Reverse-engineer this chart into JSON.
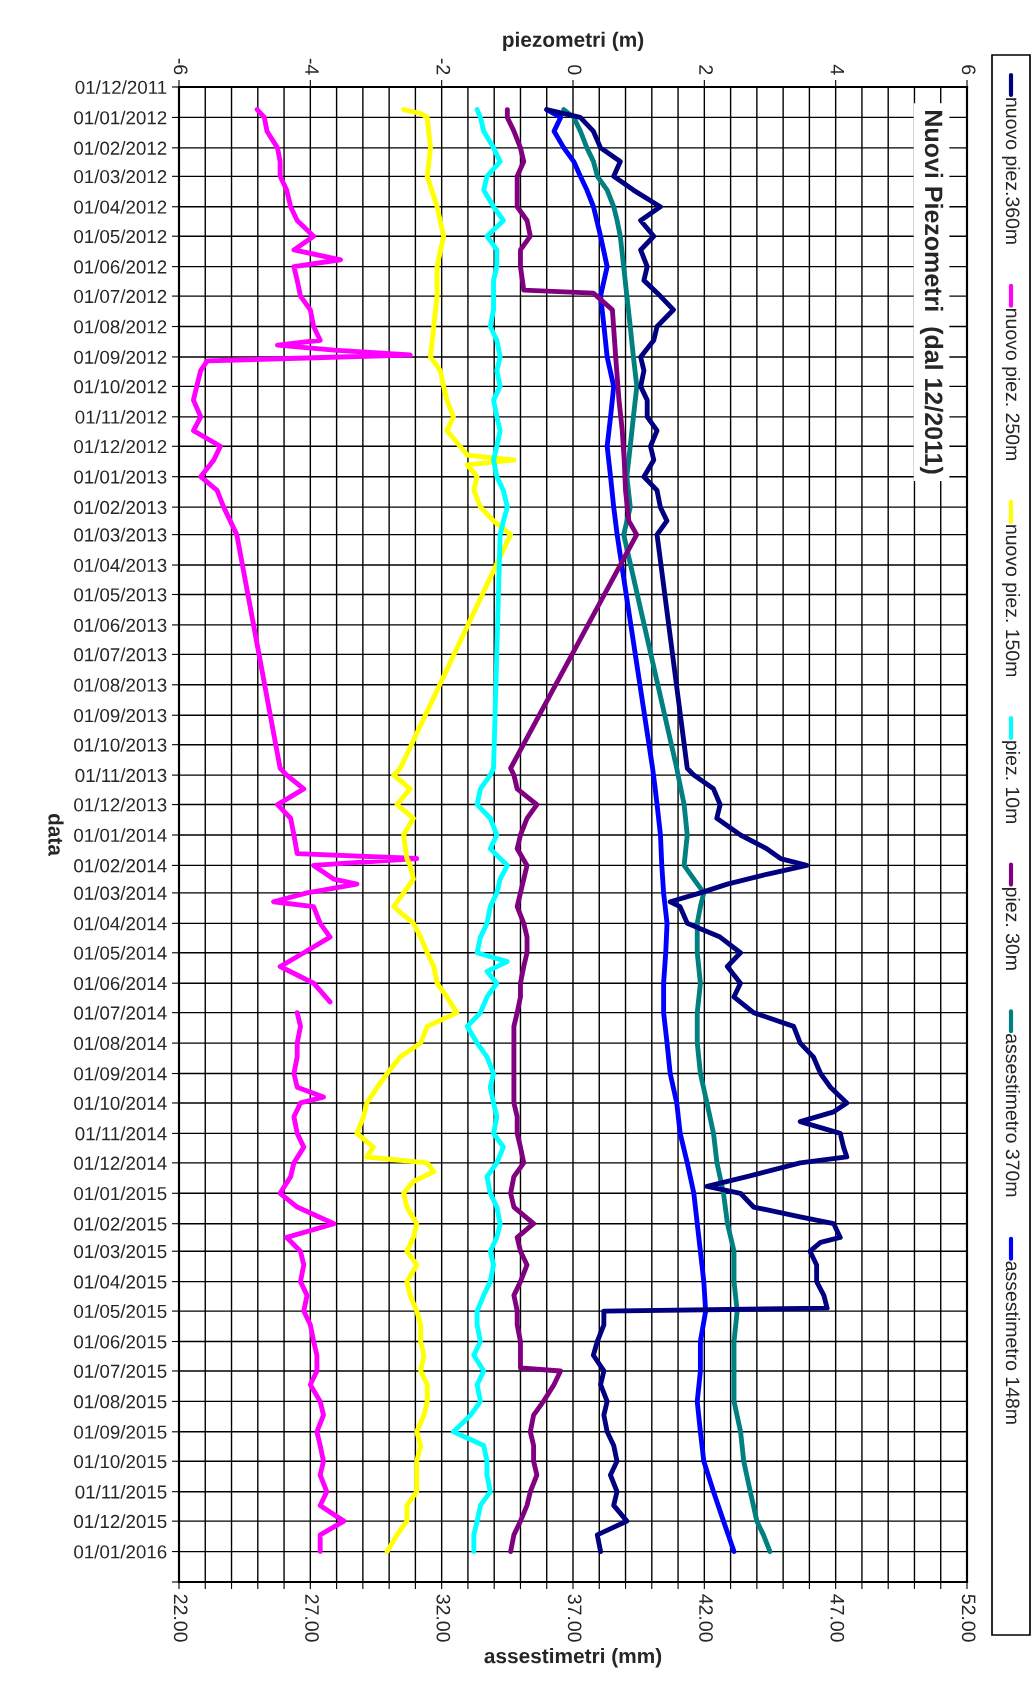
{
  "chart_data": {
    "type": "line",
    "orientation": "horizontal",
    "title": "Nuovi Piezometri  (dal 12/2011)",
    "xlabel": "assestimetri (mm)",
    "x2label": "piezometri (m)",
    "ylabel": "data",
    "legend": "right",
    "grid": true,
    "xlim": [
      22,
      52
    ],
    "xticks": [
      {
        "value": 22,
        "label": "22.00"
      },
      {
        "value": 23,
        "label": null
      },
      {
        "value": 24,
        "label": null
      },
      {
        "value": 25,
        "label": null
      },
      {
        "value": 26,
        "label": null
      },
      {
        "value": 27,
        "label": "27.00"
      },
      {
        "value": 28,
        "label": null
      },
      {
        "value": 29,
        "label": null
      },
      {
        "value": 30,
        "label": null
      },
      {
        "value": 31,
        "label": null
      },
      {
        "value": 32,
        "label": "32.00"
      },
      {
        "value": 33,
        "label": null
      },
      {
        "value": 34,
        "label": null
      },
      {
        "value": 35,
        "label": null
      },
      {
        "value": 36,
        "label": null
      },
      {
        "value": 37,
        "label": "37.00"
      },
      {
        "value": 38,
        "label": null
      },
      {
        "value": 39,
        "label": null
      },
      {
        "value": 40,
        "label": null
      },
      {
        "value": 41,
        "label": null
      },
      {
        "value": 42,
        "label": "42.00"
      },
      {
        "value": 43,
        "label": null
      },
      {
        "value": 44,
        "label": null
      },
      {
        "value": 45,
        "label": null
      },
      {
        "value": 46,
        "label": null
      },
      {
        "value": 47,
        "label": "47.00"
      },
      {
        "value": 48,
        "label": null
      },
      {
        "value": 49,
        "label": null
      },
      {
        "value": 50,
        "label": null
      },
      {
        "value": 51,
        "label": null
      },
      {
        "value": 52,
        "label": "52.00"
      }
    ],
    "x2lim": [
      -6,
      6
    ],
    "x2ticks": [
      -6,
      -4,
      -2,
      0,
      2,
      4,
      6
    ],
    "ylim": [
      "2016-02-01",
      "2011-12-01"
    ],
    "yticks": [
      {
        "value": "2011-12-01",
        "label": "01/12/2011"
      },
      {
        "value": "2012-01-01",
        "label": "01/01/2012"
      },
      {
        "value": "2012-02-01",
        "label": "01/02/2012"
      },
      {
        "value": "2012-03-01",
        "label": "01/03/2012"
      },
      {
        "value": "2012-04-01",
        "label": "01/04/2012"
      },
      {
        "value": "2012-05-01",
        "label": "01/05/2012"
      },
      {
        "value": "2012-06-01",
        "label": "01/06/2012"
      },
      {
        "value": "2012-07-01",
        "label": "01/07/2012"
      },
      {
        "value": "2012-08-01",
        "label": "01/08/2012"
      },
      {
        "value": "2012-09-01",
        "label": "01/09/2012"
      },
      {
        "value": "2012-10-01",
        "label": "01/10/2012"
      },
      {
        "value": "2012-11-01",
        "label": "01/11/2012"
      },
      {
        "value": "2012-12-01",
        "label": "01/12/2012"
      },
      {
        "value": "2013-01-01",
        "label": "01/01/2013"
      },
      {
        "value": "2013-02-01",
        "label": "01/02/2013"
      },
      {
        "value": "2013-03-01",
        "label": "01/03/2013"
      },
      {
        "value": "2013-04-01",
        "label": "01/04/2013"
      },
      {
        "value": "2013-05-01",
        "label": "01/05/2013"
      },
      {
        "value": "2013-06-01",
        "label": "01/06/2013"
      },
      {
        "value": "2013-07-01",
        "label": "01/07/2013"
      },
      {
        "value": "2013-08-01",
        "label": "01/08/2013"
      },
      {
        "value": "2013-09-01",
        "label": "01/09/2013"
      },
      {
        "value": "2013-10-01",
        "label": "01/10/2013"
      },
      {
        "value": "2013-11-01",
        "label": "01/11/2013"
      },
      {
        "value": "2013-12-01",
        "label": "01/12/2013"
      },
      {
        "value": "2014-01-01",
        "label": "01/01/2014"
      },
      {
        "value": "2014-02-01",
        "label": "01/02/2014"
      },
      {
        "value": "2014-03-01",
        "label": "01/03/2014"
      },
      {
        "value": "2014-04-01",
        "label": "01/04/2014"
      },
      {
        "value": "2014-05-01",
        "label": "01/05/2014"
      },
      {
        "value": "2014-06-01",
        "label": "01/06/2014"
      },
      {
        "value": "2014-07-01",
        "label": "01/07/2014"
      },
      {
        "value": "2014-08-01",
        "label": "01/08/2014"
      },
      {
        "value": "2014-09-01",
        "label": "01/09/2014"
      },
      {
        "value": "2014-10-01",
        "label": "01/10/2014"
      },
      {
        "value": "2014-11-01",
        "label": "01/11/2014"
      },
      {
        "value": "2014-12-01",
        "label": "01/12/2014"
      },
      {
        "value": "2015-01-01",
        "label": "01/01/2015"
      },
      {
        "value": "2015-02-01",
        "label": "01/02/2015"
      },
      {
        "value": "2015-03-01",
        "label": "01/03/2015"
      },
      {
        "value": "2015-04-01",
        "label": "01/04/2015"
      },
      {
        "value": "2015-05-01",
        "label": "01/05/2015"
      },
      {
        "value": "2015-06-01",
        "label": "01/06/2015"
      },
      {
        "value": "2015-07-01",
        "label": "01/07/2015"
      },
      {
        "value": "2015-08-01",
        "label": "01/08/2015"
      },
      {
        "value": "2015-09-01",
        "label": "01/09/2015"
      },
      {
        "value": "2015-10-01",
        "label": "01/10/2015"
      },
      {
        "value": "2015-11-01",
        "label": "01/11/2015"
      },
      {
        "value": "2015-12-01",
        "label": "01/12/2015"
      },
      {
        "value": "2016-01-01",
        "label": "01/01/2016"
      },
      {
        "value": "2016-02-01",
        "label": null
      }
    ],
    "series": [
      {
        "name": "nuovo piez.360m",
        "color": "#000080",
        "axis": "x2",
        "x": [
          "2011-12-24",
          "2012-01-01",
          "2012-01-15",
          "2012-02-01",
          "2012-02-15",
          "2012-03-01",
          "2012-03-15",
          "2012-04-01",
          "2012-04-15",
          "2012-05-01",
          "2012-05-15",
          "2012-06-01",
          "2012-06-15",
          "2012-07-01",
          "2012-07-15",
          "2012-08-01",
          "2012-08-15",
          "2012-09-01",
          "2012-09-15",
          "2012-10-01",
          "2012-10-15",
          "2012-11-01",
          "2012-11-15",
          "2012-12-01",
          "2012-12-15",
          "2013-01-01",
          "2013-01-15",
          "2013-02-01",
          "2013-02-15",
          "2013-03-01",
          "2013-10-25",
          "2013-11-01",
          "2013-11-15",
          "2013-12-01",
          "2013-12-15",
          "2014-01-01",
          "2014-01-15",
          "2014-01-25",
          "2014-02-01",
          "2014-02-10",
          "2014-02-20",
          "2014-03-01",
          "2014-03-10",
          "2014-03-15",
          "2014-04-01",
          "2014-04-15",
          "2014-05-01",
          "2014-05-15",
          "2014-06-01",
          "2014-06-15",
          "2014-07-01",
          "2014-07-15",
          "2014-08-01",
          "2014-08-15",
          "2014-09-01",
          "2014-09-15",
          "2014-10-01",
          "2014-10-10",
          "2014-10-20",
          "2014-11-01",
          "2014-11-15",
          "2014-11-25",
          "2014-12-01",
          "2014-12-15",
          "2014-12-25",
          "2015-01-01",
          "2015-01-15",
          "2015-01-25",
          "2015-02-01",
          "2015-02-15",
          "2015-02-20",
          "2015-03-01",
          "2015-03-15",
          "2015-04-01",
          "2015-04-15",
          "2015-04-28",
          "2015-05-01",
          "2015-05-15",
          "2015-06-01",
          "2015-06-15",
          "2015-07-01",
          "2015-07-15",
          "2015-08-01",
          "2015-08-15",
          "2015-09-01",
          "2015-09-15",
          "2015-10-01",
          "2015-10-15",
          "2015-11-01",
          "2015-11-15",
          "2015-12-01",
          "2015-12-15",
          "2016-01-01"
        ],
        "values": [
          -0.4,
          0.11,
          0.31,
          0.42,
          0.72,
          0.62,
          0.92,
          1.33,
          1.03,
          1.23,
          1.03,
          1.13,
          1.08,
          1.33,
          1.53,
          1.28,
          1.23,
          1.03,
          1.08,
          1.03,
          1.13,
          1.13,
          1.28,
          1.18,
          1.23,
          1.08,
          1.28,
          1.33,
          1.43,
          1.28,
          1.74,
          1.84,
          2.14,
          2.24,
          2.19,
          2.55,
          2.95,
          3.16,
          3.56,
          2.95,
          2.35,
          1.94,
          1.48,
          1.63,
          1.74,
          2.24,
          2.55,
          2.35,
          2.55,
          2.45,
          2.75,
          3.36,
          3.46,
          3.66,
          3.77,
          3.92,
          4.17,
          3.97,
          3.46,
          4.07,
          4.12,
          4.17,
          3.46,
          2.65,
          2.04,
          2.55,
          2.75,
          3.46,
          3.97,
          4.07,
          3.77,
          3.61,
          3.71,
          3.71,
          3.82,
          3.87,
          0.47,
          0.47,
          0.37,
          0.31,
          0.47,
          0.42,
          0.52,
          0.47,
          0.52,
          0.62,
          0.67,
          0.57,
          0.67,
          0.62,
          0.82,
          0.37,
          0.42
        ]
      },
      {
        "name": "nuovo piez. 250m",
        "color": "#ff00ff",
        "axis": "x2",
        "x": [
          "2011-12-24",
          "2012-01-01",
          "2012-01-15",
          "2012-02-01",
          "2012-02-15",
          "2012-03-01",
          "2012-03-15",
          "2012-04-01",
          "2012-04-15",
          "2012-05-01",
          "2012-05-15",
          "2012-05-25",
          "2012-06-01",
          "2012-06-15",
          "2012-07-01",
          "2012-07-15",
          "2012-08-01",
          "2012-08-15",
          "2012-08-20",
          "2012-08-25",
          "2012-08-30",
          "2012-09-05",
          "2012-09-15",
          "2012-10-01",
          "2012-10-15",
          "2012-11-01",
          "2012-11-15",
          "2012-12-01",
          "2012-12-15",
          "2013-01-01",
          "2013-01-15",
          "2013-02-01",
          "2013-02-15",
          "2013-03-01",
          "2013-10-25",
          "2013-11-01",
          "2013-11-15",
          "2013-12-01",
          "2013-12-15",
          "2014-01-01",
          "2014-01-20",
          "2014-01-25",
          "2014-02-01",
          "2014-02-15",
          "2014-02-20",
          "2014-03-01",
          "2014-03-10",
          "2014-03-15",
          "2014-04-01",
          "2014-04-15",
          "2014-05-01",
          "2014-05-15",
          "2014-06-01",
          "2014-06-20",
          "2014-06-25",
          "2014-07-01",
          "2014-07-15",
          "2014-08-01",
          "2014-08-15",
          "2014-09-01",
          "2014-09-15",
          "2014-09-25",
          "2014-10-01",
          "2014-10-15",
          "2014-11-01",
          "2014-11-15",
          "2014-12-01",
          "2014-12-15",
          "2015-01-01",
          "2015-01-15",
          "2015-02-01",
          "2015-02-15",
          "2015-03-01",
          "2015-03-15",
          "2015-04-01",
          "2015-04-15",
          "2015-05-01",
          "2015-05-15",
          "2015-06-01",
          "2015-06-15",
          "2015-07-01",
          "2015-07-15",
          "2015-08-01",
          "2015-08-15",
          "2015-09-01",
          "2015-09-15",
          "2015-10-01",
          "2015-10-15",
          "2015-11-01",
          "2015-11-15",
          "2015-12-01",
          "2015-12-15",
          "2016-01-01"
        ],
        "values": [
          -4.81,
          -4.7,
          -4.66,
          -4.5,
          -4.46,
          -4.46,
          -4.36,
          -4.3,
          -4.2,
          -3.95,
          -4.25,
          -3.54,
          -4.25,
          -4.2,
          -4.15,
          -4.0,
          -3.95,
          -3.85,
          -4.5,
          -3.64,
          -2.48,
          -5.57,
          -5.67,
          -5.73,
          -5.78,
          -5.67,
          -5.78,
          -5.37,
          -5.47,
          -5.67,
          -5.42,
          -5.32,
          -5.22,
          -5.12,
          -4.46,
          -4.36,
          -4.1,
          -4.5,
          -4.3,
          -4.25,
          -4.2,
          -2.38,
          -3.95,
          -3.64,
          -3.29,
          -4.05,
          -4.56,
          -3.95,
          -3.85,
          -3.7,
          -4.1,
          -4.46,
          -3.95,
          -3.7,
          null,
          -4.2,
          -4.15,
          -4.2,
          -4.2,
          -4.25,
          -4.2,
          -3.8,
          -4.15,
          -4.25,
          -4.2,
          -4.1,
          -4.25,
          -4.3,
          -4.46,
          -4.2,
          -3.64,
          -4.36,
          -4.15,
          -4.1,
          -4.15,
          -4.05,
          -4.1,
          -4.0,
          -3.95,
          -3.9,
          -3.9,
          -4.0,
          -3.85,
          -3.8,
          -3.9,
          -3.85,
          -3.8,
          -3.85,
          -3.75,
          -3.85,
          -3.49,
          -3.85,
          -3.85
        ]
      },
      {
        "name": "nuovo piez. 150m",
        "color": "#ffff00",
        "axis": "x2",
        "x": [
          "2011-12-24",
          "2011-12-28",
          "2012-01-01",
          "2012-02-01",
          "2012-03-01",
          "2012-04-01",
          "2012-05-01",
          "2012-06-01",
          "2012-07-01",
          "2012-08-01",
          "2012-09-01",
          "2012-09-15",
          "2012-10-01",
          "2012-10-15",
          "2012-11-01",
          "2012-11-15",
          "2012-12-01",
          "2012-12-10",
          "2012-12-15",
          "2012-12-20",
          "2013-01-01",
          "2013-01-15",
          "2013-02-01",
          "2013-02-15",
          "2013-03-01",
          "2013-10-25",
          "2013-11-01",
          "2013-11-15",
          "2013-12-01",
          "2013-12-15",
          "2014-01-01",
          "2014-01-25",
          "2014-02-01",
          "2014-02-15",
          "2014-03-01",
          "2014-03-15",
          "2014-04-01",
          "2014-04-15",
          "2014-05-01",
          "2014-05-15",
          "2014-06-01",
          "2014-06-15",
          "2014-07-01",
          "2014-07-15",
          "2014-08-01",
          "2014-08-15",
          "2014-09-01",
          "2014-09-15",
          "2014-10-01",
          "2014-10-15",
          "2014-11-01",
          "2014-11-15",
          "2014-11-25",
          "2014-12-01",
          "2014-12-10",
          "2014-12-20",
          "2015-01-01",
          "2015-01-15",
          "2015-02-01",
          "2015-02-15",
          "2015-03-01",
          "2015-03-15",
          "2015-04-01",
          "2015-04-15",
          "2015-05-01",
          "2015-05-15",
          "2015-06-01",
          "2015-06-15",
          "2015-07-01",
          "2015-07-15",
          "2015-08-01",
          "2015-08-15",
          "2015-09-01",
          "2015-09-15",
          "2015-10-01",
          "2015-10-15",
          "2015-11-01",
          "2015-11-15",
          "2015-12-01",
          "2015-12-15",
          "2016-01-01"
        ],
        "values": [
          -2.58,
          -2.32,
          -2.22,
          -2.17,
          -2.22,
          -2.07,
          -1.97,
          -2.07,
          -2.07,
          -2.12,
          -2.17,
          -2.02,
          -1.97,
          -1.92,
          -1.82,
          -1.92,
          -1.72,
          -1.61,
          -0.9,
          -1.61,
          -1.46,
          -1.51,
          -1.41,
          -1.21,
          -0.95,
          -2.63,
          -2.73,
          -2.48,
          -2.68,
          -2.43,
          -2.58,
          -2.53,
          -2.48,
          -2.43,
          -2.58,
          -2.73,
          -2.43,
          -2.32,
          -2.22,
          -2.12,
          -2.07,
          -1.92,
          -1.77,
          -2.22,
          -2.32,
          -2.63,
          -2.83,
          -2.98,
          -3.14,
          -3.19,
          -3.29,
          -3.04,
          -3.14,
          -2.22,
          -2.12,
          -2.43,
          -2.58,
          -2.53,
          -2.38,
          -2.43,
          -2.53,
          -2.38,
          -2.53,
          -2.48,
          -2.38,
          -2.32,
          -2.32,
          -2.27,
          -2.32,
          -2.22,
          -2.22,
          -2.27,
          -2.38,
          -2.32,
          -2.38,
          -2.38,
          -2.38,
          -2.53,
          -2.53,
          -2.68,
          -2.83
        ]
      },
      {
        "name": "piez. 10m",
        "color": "#00ffff",
        "axis": "x2",
        "x": [
          "2011-12-24",
          "2012-01-01",
          "2012-01-15",
          "2012-02-01",
          "2012-02-15",
          "2012-03-01",
          "2012-03-15",
          "2012-04-01",
          "2012-04-15",
          "2012-05-01",
          "2012-05-15",
          "2012-06-01",
          "2012-06-15",
          "2012-07-01",
          "2012-07-15",
          "2012-08-01",
          "2012-08-15",
          "2012-09-01",
          "2012-09-15",
          "2012-10-01",
          "2012-10-15",
          "2012-11-01",
          "2012-11-15",
          "2012-12-01",
          "2012-12-15",
          "2013-01-01",
          "2013-01-15",
          "2013-02-01",
          "2013-02-15",
          "2013-03-01",
          "2013-10-25",
          "2013-11-01",
          "2013-11-15",
          "2013-12-01",
          "2013-12-15",
          "2014-01-01",
          "2014-01-15",
          "2014-02-01",
          "2014-02-15",
          "2014-03-01",
          "2014-03-15",
          "2014-04-01",
          "2014-04-15",
          "2014-05-01",
          "2014-05-10",
          "2014-05-20",
          "2014-06-01",
          "2014-06-15",
          "2014-07-01",
          "2014-07-15",
          "2014-08-01",
          "2014-08-15",
          "2014-09-01",
          "2014-09-15",
          "2014-10-01",
          "2014-10-15",
          "2014-11-01",
          "2014-11-15",
          "2014-12-01",
          "2014-12-15",
          "2015-01-01",
          "2015-01-15",
          "2015-02-01",
          "2015-02-15",
          "2015-03-01",
          "2015-03-15",
          "2015-04-01",
          "2015-04-15",
          "2015-05-01",
          "2015-05-15",
          "2015-06-01",
          "2015-06-15",
          "2015-07-01",
          "2015-07-15",
          "2015-08-01",
          "2015-08-15",
          "2015-09-01",
          "2015-09-15",
          "2015-10-01",
          "2015-10-15",
          "2015-11-01",
          "2015-11-15",
          "2015-12-01",
          "2015-12-15",
          "2016-01-01"
        ],
        "values": [
          -1.46,
          -1.41,
          -1.36,
          -1.21,
          -1.11,
          -1.31,
          -1.36,
          -1.21,
          -1.06,
          -1.31,
          -1.16,
          -1.16,
          -1.21,
          -1.21,
          -1.21,
          -1.26,
          -1.16,
          -1.11,
          -1.16,
          -1.11,
          -1.21,
          -1.16,
          -1.11,
          -1.16,
          -1.21,
          -1.16,
          -1.06,
          -1.0,
          -1.06,
          -1.11,
          -1.21,
          -1.26,
          -1.41,
          -1.46,
          -1.26,
          -1.16,
          -1.26,
          -1.0,
          -1.11,
          -1.16,
          -1.26,
          -1.31,
          -1.41,
          -1.46,
          -1.0,
          -1.31,
          -1.16,
          -1.31,
          -1.41,
          -1.61,
          -1.46,
          -1.31,
          -1.21,
          -1.26,
          -1.21,
          -1.16,
          -1.21,
          -1.06,
          -1.16,
          -1.31,
          -1.26,
          -1.16,
          -1.11,
          -1.16,
          -1.26,
          -1.21,
          -1.26,
          -1.36,
          -1.46,
          -1.46,
          -1.41,
          -1.51,
          -1.36,
          -1.46,
          -1.41,
          -1.56,
          -1.82,
          -1.36,
          -1.31,
          -1.31,
          -1.26,
          -1.41,
          -1.46,
          -1.51,
          -1.51
        ]
      },
      {
        "name": "piez. 30m",
        "color": "#800080",
        "axis": "x2",
        "x": [
          "2011-12-24",
          "2012-01-01",
          "2012-01-15",
          "2012-02-01",
          "2012-02-15",
          "2012-03-01",
          "2012-04-01",
          "2012-04-15",
          "2012-05-01",
          "2012-05-15",
          "2012-06-01",
          "2012-06-25",
          "2012-06-28",
          "2012-07-15",
          "2012-09-01",
          "2012-10-15",
          "2012-11-15",
          "2012-12-15",
          "2013-01-15",
          "2013-02-15",
          "2013-03-01",
          "2013-10-25",
          "2013-11-01",
          "2013-11-15",
          "2013-12-01",
          "2013-12-15",
          "2014-01-01",
          "2014-01-15",
          "2014-02-01",
          "2014-02-15",
          "2014-03-01",
          "2014-03-15",
          "2014-04-01",
          "2014-04-15",
          "2014-05-01",
          "2014-05-15",
          "2014-06-01",
          "2014-06-15",
          "2014-07-01",
          "2014-07-15",
          "2014-08-01",
          "2014-09-01",
          "2014-10-01",
          "2014-10-15",
          "2014-11-01",
          "2014-11-15",
          "2014-12-01",
          "2014-12-15",
          "2015-01-01",
          "2015-01-15",
          "2015-02-01",
          "2015-02-15",
          "2015-03-01",
          "2015-03-15",
          "2015-04-01",
          "2015-04-15",
          "2015-05-01",
          "2015-05-15",
          "2015-06-01",
          "2015-06-28",
          "2015-07-01",
          "2015-07-15",
          "2015-08-01",
          "2015-08-15",
          "2015-09-01",
          "2015-09-15",
          "2015-10-01",
          "2015-10-15",
          "2015-11-01",
          "2015-11-15",
          "2015-12-01",
          "2015-12-15",
          "2016-01-01"
        ],
        "values": [
          -1.0,
          -1.0,
          -0.9,
          -0.8,
          -0.75,
          -0.85,
          -0.85,
          -0.7,
          -0.65,
          -0.8,
          -0.8,
          -0.75,
          0.31,
          0.6,
          0.65,
          0.7,
          0.75,
          0.78,
          0.8,
          0.85,
          0.97,
          -0.95,
          -0.9,
          -0.85,
          -0.55,
          -0.7,
          -0.8,
          -0.85,
          -0.7,
          -0.75,
          -0.8,
          -0.85,
          -0.75,
          -0.7,
          -0.7,
          -0.75,
          -0.8,
          -0.8,
          -0.85,
          -0.9,
          -0.9,
          -0.9,
          -0.9,
          -0.85,
          -0.85,
          -0.8,
          -0.75,
          -0.9,
          -0.95,
          -0.9,
          -0.6,
          -0.85,
          -0.8,
          -0.7,
          -0.8,
          -0.9,
          -0.85,
          -0.85,
          -0.8,
          -0.8,
          -0.19,
          -0.29,
          -0.45,
          -0.6,
          -0.65,
          -0.6,
          -0.6,
          -0.55,
          -0.65,
          -0.7,
          -0.8,
          -0.9,
          -0.95
        ]
      },
      {
        "name": "assestimetro 370m",
        "color": "#008080",
        "x": [
          "2011-12-24",
          "2012-01-01",
          "2012-01-15",
          "2012-02-01",
          "2012-02-15",
          "2012-03-01",
          "2012-03-15",
          "2012-04-01",
          "2012-04-15",
          "2012-05-01",
          "2012-06-01",
          "2012-07-01",
          "2012-08-01",
          "2012-09-01",
          "2012-10-01",
          "2012-11-01",
          "2012-12-01",
          "2013-01-01",
          "2013-02-01",
          "2013-03-01",
          "2013-10-25",
          "2013-11-01",
          "2013-12-01",
          "2014-01-01",
          "2014-02-01",
          "2014-02-15",
          "2014-03-01",
          "2014-03-15",
          "2014-04-01",
          "2014-05-01",
          "2014-06-01",
          "2014-07-01",
          "2014-08-01",
          "2014-09-01",
          "2014-10-01",
          "2014-11-01",
          "2014-12-01",
          "2015-01-01",
          "2015-02-01",
          "2015-03-01",
          "2015-04-01",
          "2015-05-01",
          "2015-06-01",
          "2015-07-01",
          "2015-08-01",
          "2015-09-01",
          "2015-10-01",
          "2015-11-01",
          "2015-12-01",
          "2015-12-15",
          "2016-01-01"
        ],
        "values": [
          36.65,
          37.03,
          37.28,
          37.53,
          37.78,
          37.93,
          38.3,
          38.55,
          38.68,
          38.8,
          38.93,
          39.05,
          39.18,
          39.3,
          39.43,
          39.3,
          39.18,
          39.05,
          39.18,
          38.93,
          40.95,
          41.0,
          41.23,
          41.35,
          41.23,
          41.6,
          41.98,
          41.85,
          41.73,
          41.73,
          41.85,
          41.73,
          41.73,
          41.85,
          42.1,
          42.35,
          42.48,
          42.73,
          42.88,
          43.13,
          43.13,
          43.25,
          43.13,
          43.13,
          43.13,
          43.38,
          43.5,
          43.75,
          44.0,
          44.25,
          44.5
        ]
      },
      {
        "name": "assestimetro 148m",
        "color": "#0000ff",
        "x": [
          "2011-12-24",
          "2012-01-01",
          "2012-01-15",
          "2012-02-01",
          "2012-02-15",
          "2012-03-01",
          "2012-03-15",
          "2012-04-01",
          "2012-05-01",
          "2012-06-01",
          "2012-07-01",
          "2012-08-01",
          "2012-09-01",
          "2012-10-01",
          "2012-11-01",
          "2012-12-01",
          "2013-01-01",
          "2013-02-01",
          "2013-03-01",
          "2013-10-25",
          "2013-11-15",
          "2013-12-01",
          "2014-01-01",
          "2014-02-01",
          "2014-03-01",
          "2014-04-01",
          "2014-05-01",
          "2014-06-01",
          "2014-07-01",
          "2014-08-01",
          "2014-09-01",
          "2014-10-01",
          "2014-11-01",
          "2014-12-01",
          "2015-01-01",
          "2015-02-01",
          "2015-03-01",
          "2015-04-01",
          "2015-05-01",
          "2015-06-01",
          "2015-07-01",
          "2015-08-01",
          "2015-09-01",
          "2015-10-01",
          "2015-11-01",
          "2015-12-01",
          "2016-01-01"
        ],
        "values": [
          36.0,
          36.53,
          36.28,
          36.65,
          37.03,
          37.28,
          37.53,
          37.78,
          38.05,
          38.3,
          38.05,
          38.18,
          38.3,
          38.55,
          38.43,
          38.3,
          38.43,
          38.55,
          38.68,
          40.03,
          40.13,
          40.2,
          40.33,
          40.38,
          40.45,
          40.58,
          40.53,
          40.45,
          40.45,
          40.58,
          40.7,
          40.95,
          41.08,
          41.35,
          41.6,
          41.73,
          41.85,
          41.98,
          42.05,
          41.85,
          41.85,
          41.73,
          41.85,
          41.98,
          42.35,
          42.73,
          43.13
        ]
      }
    ]
  }
}
